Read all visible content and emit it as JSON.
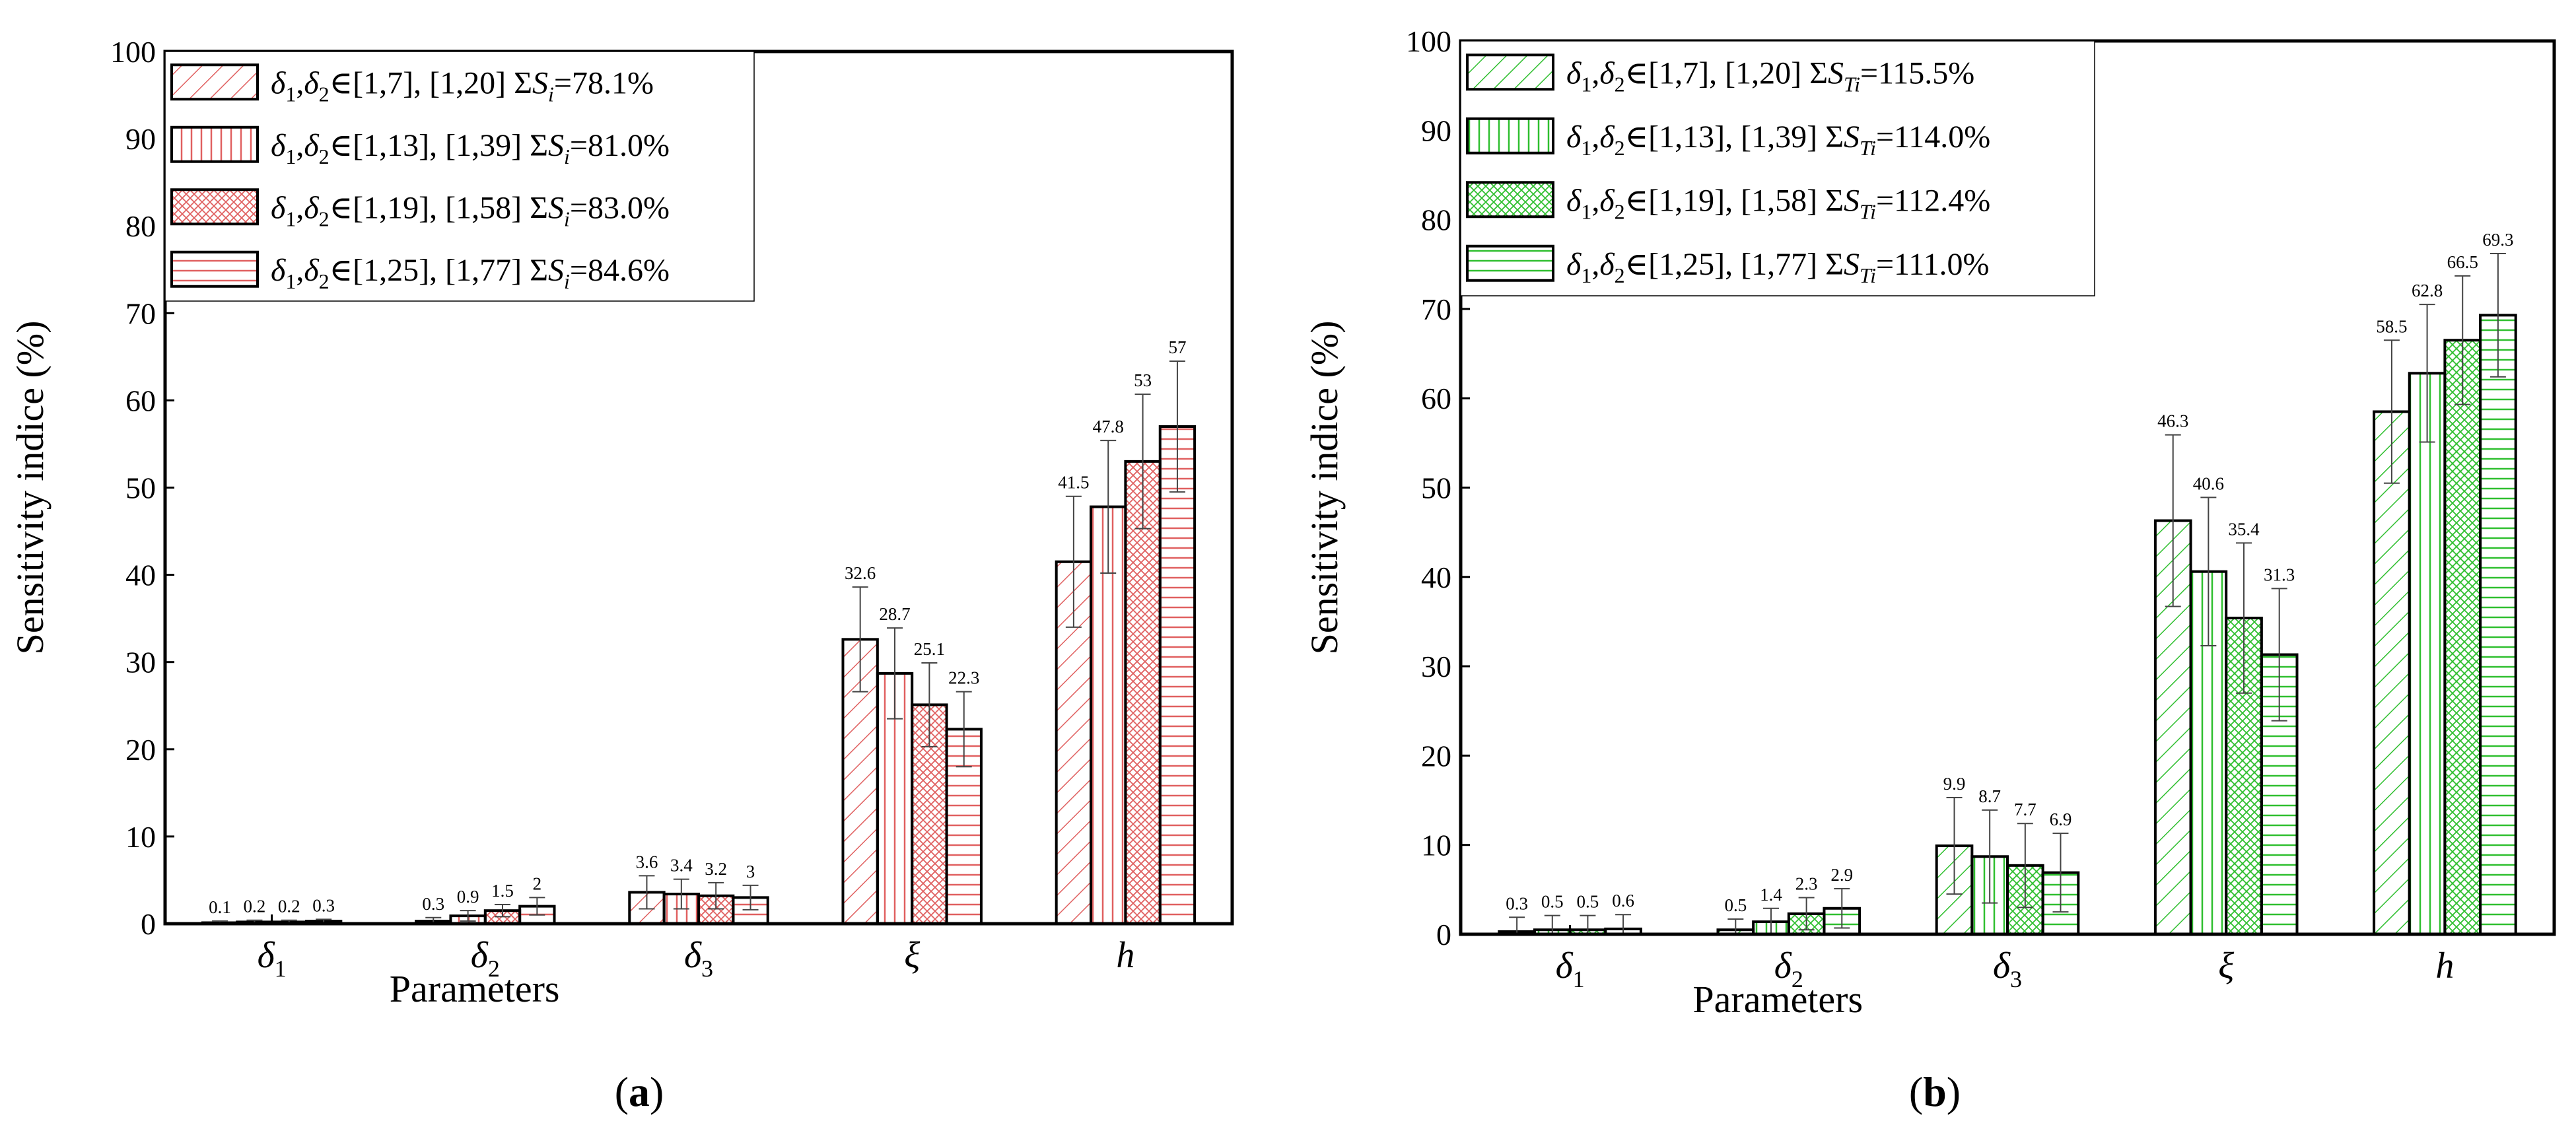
{
  "figure": {
    "panels": [
      {
        "label_open": "(",
        "label_letter": "a",
        "label_close": ")"
      },
      {
        "label_open": "(",
        "label_letter": "b",
        "label_close": ")"
      }
    ]
  },
  "colors": {
    "panel_a_hatch": "#e06060",
    "panel_b_hatch": "#2fbf2f",
    "axis": "#000000",
    "error_bar": "#444444"
  },
  "chart_data": [
    {
      "type": "bar",
      "panel": "a",
      "title": "",
      "xlabel": "Parameters",
      "ylabel": "Sensitivity  indice (%)",
      "ylim": [
        0,
        100
      ],
      "yticks": [
        0,
        10,
        20,
        30,
        40,
        50,
        60,
        70,
        80,
        90,
        100
      ],
      "categories": [
        {
          "sym": "δ",
          "sub": "1"
        },
        {
          "sym": "δ",
          "sub": "2"
        },
        {
          "sym": "δ",
          "sub": "3"
        },
        {
          "sym": "ξ",
          "sub": ""
        },
        {
          "sym": "h",
          "sub": ""
        }
      ],
      "legend_position": "top-left",
      "series": [
        {
          "name": "δ1,δ2∈[1,7], [1,20]  ΣSi=78.1%",
          "range": "[1,7], [1,20]",
          "sum_symbol": "S",
          "sum_sub": "i",
          "sum_value": "=78.1%",
          "pattern": "diag",
          "values": [
            0.1,
            0.3,
            3.6,
            32.6,
            41.5
          ],
          "labels": [
            "0.1",
            "0.3",
            "3.6",
            "32.6",
            "41.5"
          ],
          "errors": [
            0.2,
            0.4,
            1.9,
            6.0,
            7.5
          ]
        },
        {
          "name": "δ1,δ2∈[1,13], [1,39]  ΣSi=81.0%",
          "range": "[1,13], [1,39]",
          "sum_symbol": "S",
          "sum_sub": "i",
          "sum_value": "=81.0%",
          "pattern": "vert",
          "values": [
            0.2,
            0.9,
            3.4,
            28.7,
            47.8
          ],
          "labels": [
            "0.2",
            "0.9",
            "3.4",
            "28.7",
            "47.8"
          ],
          "errors": [
            0.2,
            0.6,
            1.7,
            5.2,
            7.6
          ]
        },
        {
          "name": "δ1,δ2∈[1,19], [1,58]  ΣSi=83.0%",
          "range": "[1,19], [1,58]",
          "sum_symbol": "S",
          "sum_sub": "i",
          "sum_value": "=83.0%",
          "pattern": "cross",
          "values": [
            0.2,
            1.5,
            3.2,
            25.1,
            53.0
          ],
          "labels": [
            "0.2",
            "1.5",
            "3.2",
            "25.1",
            "53"
          ],
          "errors": [
            0.2,
            0.7,
            1.5,
            4.8,
            7.7
          ]
        },
        {
          "name": "δ1,δ2∈[1,25], [1,77]  ΣSi=84.6%",
          "range": "[1,25], [1,77]",
          "sum_symbol": "S",
          "sum_sub": "i",
          "sum_value": "=84.6%",
          "pattern": "horiz",
          "values": [
            0.3,
            2.0,
            3.0,
            22.3,
            57.0
          ],
          "labels": [
            "0.3",
            "2",
            "3",
            "22.3",
            "57"
          ],
          "errors": [
            0.2,
            1.0,
            1.4,
            4.3,
            7.5
          ]
        }
      ]
    },
    {
      "type": "bar",
      "panel": "b",
      "title": "",
      "xlabel": "Parameters",
      "ylabel": "Sensitivity  indice (%)",
      "ylim": [
        0,
        100
      ],
      "yticks": [
        0,
        10,
        20,
        30,
        40,
        50,
        60,
        70,
        80,
        90,
        100
      ],
      "categories": [
        {
          "sym": "δ",
          "sub": "1"
        },
        {
          "sym": "δ",
          "sub": "2"
        },
        {
          "sym": "δ",
          "sub": "3"
        },
        {
          "sym": "ξ",
          "sub": ""
        },
        {
          "sym": "h",
          "sub": ""
        }
      ],
      "legend_position": "top-left",
      "series": [
        {
          "name": "δ1,δ2∈[1,7], [1,20]  ΣSTi=115.5%",
          "range": "[1,7], [1,20]",
          "sum_symbol": "S",
          "sum_sub": "Ti",
          "sum_value": "=115.5%",
          "pattern": "diag",
          "values": [
            0.3,
            0.5,
            9.9,
            46.3,
            58.5
          ],
          "labels": [
            "0.3",
            "0.5",
            "9.9",
            "46.3",
            "58.5"
          ],
          "errors": [
            1.6,
            1.2,
            5.4,
            9.6,
            8.0
          ]
        },
        {
          "name": "δ1,δ2∈[1,13], [1,39]  ΣSTi=114.0%",
          "range": "[1,13], [1,39]",
          "sum_symbol": "S",
          "sum_sub": "Ti",
          "sum_value": "=114.0%",
          "pattern": "vert",
          "values": [
            0.5,
            1.4,
            8.7,
            40.6,
            62.8
          ],
          "labels": [
            "0.5",
            "1.4",
            "8.7",
            "40.6",
            "62.8"
          ],
          "errors": [
            1.6,
            1.5,
            5.2,
            8.3,
            7.7
          ]
        },
        {
          "name": "δ1,δ2∈[1,19], [1,58]  ΣSTi=112.4%",
          "range": "[1,19], [1,58]",
          "sum_symbol": "S",
          "sum_sub": "Ti",
          "sum_value": "=112.4%",
          "pattern": "cross",
          "values": [
            0.5,
            2.3,
            7.7,
            35.4,
            66.5
          ],
          "labels": [
            "0.5",
            "2.3",
            "7.7",
            "35.4",
            "66.5"
          ],
          "errors": [
            1.6,
            1.8,
            4.7,
            8.4,
            7.2
          ]
        },
        {
          "name": "δ1,δ2∈[1,25], [1,77]  ΣSTi=111.0%",
          "range": "[1,25], [1,77]",
          "sum_symbol": "S",
          "sum_sub": "Ti",
          "sum_value": "=111.0%",
          "pattern": "horiz",
          "values": [
            0.6,
            2.9,
            6.9,
            31.3,
            69.3
          ],
          "labels": [
            "0.6",
            "2.9",
            "6.9",
            "31.3",
            "69.3"
          ],
          "errors": [
            1.6,
            2.2,
            4.4,
            7.4,
            6.9
          ]
        }
      ]
    }
  ]
}
